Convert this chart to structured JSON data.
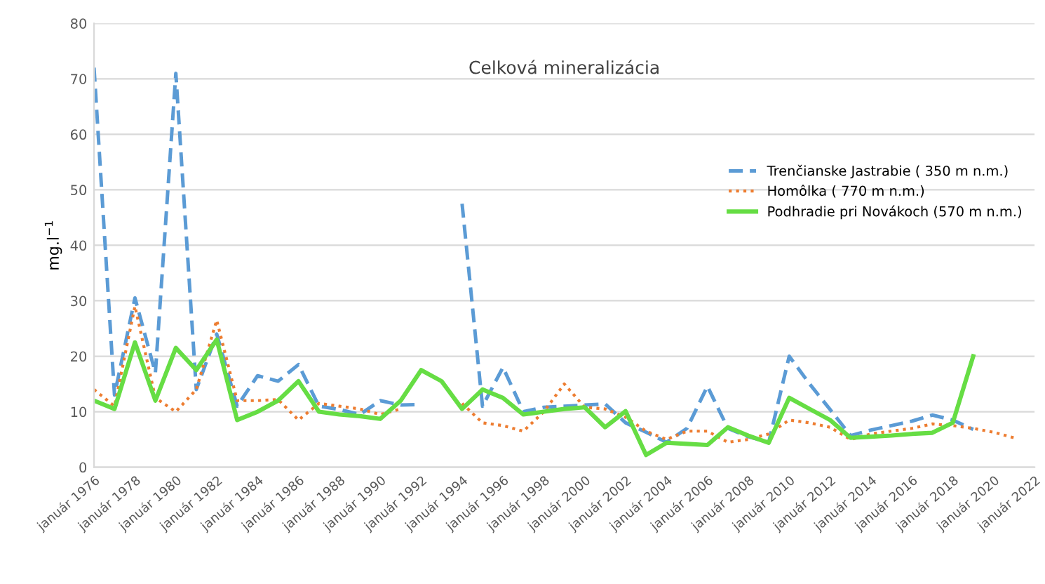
{
  "chart_data": {
    "type": "line",
    "title": "Celková mineralizácia",
    "ylabel": "mg.l$^{−1}$",
    "x": [
      "1976",
      "1977",
      "1978",
      "1979",
      "1980",
      "1981",
      "1982",
      "1983",
      "1984",
      "1985",
      "1986",
      "1987",
      "1988",
      "1989",
      "1990",
      "1991",
      "1992",
      "1993",
      "1994",
      "1995",
      "1996",
      "1997",
      "1998",
      "1999",
      "2000",
      "2001",
      "2002",
      "2003",
      "2004",
      "2005",
      "2006",
      "2007",
      "2008",
      "2009",
      "2010",
      "2011",
      "2012",
      "2013",
      "2014",
      "2015",
      "2016",
      "2017",
      "2018",
      "2019",
      "2020",
      "2021"
    ],
    "series": [
      {
        "name": "Trenčianske Jastrabie ( 350 m n.m.)",
        "color": "#5b9bd5",
        "line_style": "dashed",
        "values": [
          72,
          13,
          30.5,
          17,
          71,
          14,
          24,
          11,
          16.5,
          15.5,
          18.5,
          11,
          10.4,
          9.5,
          12,
          11.2,
          11.3,
          null,
          47.5,
          11,
          18,
          10,
          10.8,
          11,
          11.2,
          11.4,
          8,
          6.3,
          4.5,
          7,
          14.6,
          7,
          5.5,
          4.5,
          20,
          15,
          10.4,
          5.7,
          6.7,
          7.5,
          8.3,
          9.4,
          8.5,
          6.8,
          null,
          null
        ]
      },
      {
        "name": "Homôlka ( 770 m n.m.)",
        "color": "#ed7d31",
        "line_style": "dotted",
        "values": [
          14,
          11,
          29,
          12.5,
          10,
          14,
          26.5,
          12,
          12,
          12.2,
          8.5,
          11.5,
          11,
          10.5,
          9.5,
          10.5,
          null,
          null,
          11.5,
          8,
          7.5,
          6.5,
          10,
          15,
          10.8,
          10.5,
          9,
          6.5,
          5,
          6.5,
          6.5,
          4.5,
          5,
          6,
          8.5,
          8,
          7.2,
          5,
          6,
          6.5,
          7,
          7.8,
          7.5,
          7,
          6.3,
          5.3
        ]
      },
      {
        "name": "Podhradie pri Novákoch (570 m n.m.)",
        "color": "#66dd44",
        "line_style": "solid",
        "values": [
          12,
          10.5,
          22.5,
          12,
          21.5,
          17.5,
          23,
          8.5,
          10,
          12,
          15.5,
          10,
          9.5,
          9.2,
          8.7,
          12,
          17.5,
          15.5,
          10.5,
          14,
          12.5,
          9.5,
          10,
          10.5,
          10.8,
          7.2,
          10.1,
          2.2,
          4.4,
          4.2,
          4.0,
          7.2,
          5.7,
          4.4,
          12.5,
          10.5,
          8.5,
          5.3,
          5.5,
          5.7,
          6,
          6.2,
          8,
          20,
          null,
          null
        ]
      }
    ],
    "xlim": [
      "1976",
      "2022"
    ],
    "xticks": [
      {
        "value": "1976",
        "label": "január 1976"
      },
      {
        "value": "1978",
        "label": "január 1978"
      },
      {
        "value": "1980",
        "label": "január 1980"
      },
      {
        "value": "1982",
        "label": "január 1982"
      },
      {
        "value": "1984",
        "label": "január 1984"
      },
      {
        "value": "1986",
        "label": "január 1986"
      },
      {
        "value": "1988",
        "label": "január 1988"
      },
      {
        "value": "1990",
        "label": "január 1990"
      },
      {
        "value": "1992",
        "label": "január 1992"
      },
      {
        "value": "1994",
        "label": "január 1994"
      },
      {
        "value": "1996",
        "label": "január 1996"
      },
      {
        "value": "1998",
        "label": "január 1998"
      },
      {
        "value": "2000",
        "label": "január 2000"
      },
      {
        "value": "2002",
        "label": "január 2002"
      },
      {
        "value": "2004",
        "label": "január 2004"
      },
      {
        "value": "2006",
        "label": "január 2006"
      },
      {
        "value": "2008",
        "label": "január 2008"
      },
      {
        "value": "2010",
        "label": "január 2010"
      },
      {
        "value": "2012",
        "label": "január 2012"
      },
      {
        "value": "2014",
        "label": "január 2014"
      },
      {
        "value": "2016",
        "label": "január 2016"
      },
      {
        "value": "2018",
        "label": "január 2018"
      },
      {
        "value": "2020",
        "label": "január 2020"
      },
      {
        "value": "2022",
        "label": "január 2022"
      }
    ],
    "ylim": [
      0,
      80
    ],
    "yticks": [
      0,
      10,
      20,
      30,
      40,
      50,
      60,
      70,
      80
    ],
    "grid": "y",
    "legend": "right",
    "marker": "none"
  }
}
